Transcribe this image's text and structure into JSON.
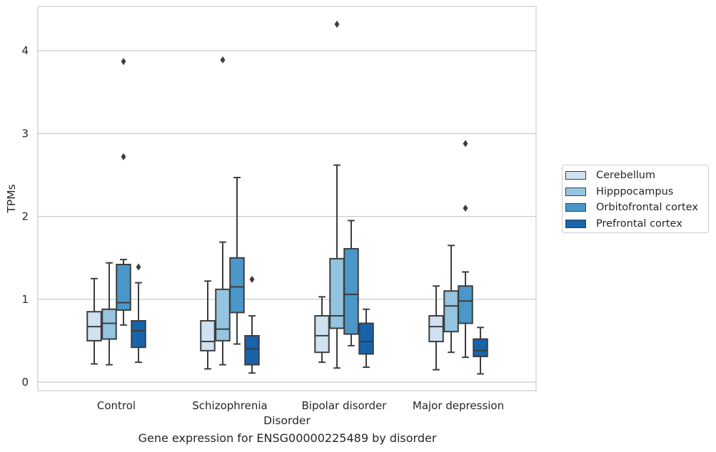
{
  "chart_data": {
    "type": "boxplot",
    "title": "Gene expression for ENSG00000225489 by disorder",
    "xlabel": "Disorder",
    "ylabel": "TPMs",
    "ylim": [
      -0.1,
      4.55
    ],
    "yticks": [
      0,
      1,
      2,
      3,
      4
    ],
    "grid": "horizontal",
    "legend_position": "right, outside plot",
    "categories": [
      "Control",
      "Schizophrenia",
      "Bipolar disorder",
      "Major depression"
    ],
    "series": [
      {
        "name": "Cerebellum",
        "color": "#d0e1f2",
        "boxes": [
          {
            "whislo": 0.22,
            "q1": 0.5,
            "med": 0.67,
            "q3": 0.85,
            "whishi": 1.25,
            "fliers": []
          },
          {
            "whislo": 0.16,
            "q1": 0.38,
            "med": 0.49,
            "q3": 0.74,
            "whishi": 1.22,
            "fliers": []
          },
          {
            "whislo": 0.24,
            "q1": 0.36,
            "med": 0.56,
            "q3": 0.8,
            "whishi": 1.03,
            "fliers": []
          },
          {
            "whislo": 0.15,
            "q1": 0.49,
            "med": 0.67,
            "q3": 0.8,
            "whishi": 1.16,
            "fliers": []
          }
        ]
      },
      {
        "name": "Hipppocampus",
        "color": "#94c4df",
        "boxes": [
          {
            "whislo": 0.21,
            "q1": 0.52,
            "med": 0.71,
            "q3": 0.88,
            "whishi": 1.44,
            "fliers": []
          },
          {
            "whislo": 0.21,
            "q1": 0.5,
            "med": 0.64,
            "q3": 1.12,
            "whishi": 1.69,
            "fliers": [
              3.89
            ]
          },
          {
            "whislo": 0.17,
            "q1": 0.65,
            "med": 0.8,
            "q3": 1.49,
            "whishi": 2.62,
            "fliers": [
              4.32
            ]
          },
          {
            "whislo": 0.36,
            "q1": 0.61,
            "med": 0.92,
            "q3": 1.1,
            "whishi": 1.65,
            "fliers": []
          }
        ]
      },
      {
        "name": "Orbitofrontal cortex",
        "color": "#4a98c9",
        "boxes": [
          {
            "whislo": 0.69,
            "q1": 0.87,
            "med": 0.96,
            "q3": 1.42,
            "whishi": 1.48,
            "fliers": [
              2.72,
              3.87
            ]
          },
          {
            "whislo": 0.46,
            "q1": 0.84,
            "med": 1.15,
            "q3": 1.5,
            "whishi": 2.47,
            "fliers": []
          },
          {
            "whislo": 0.44,
            "q1": 0.58,
            "med": 1.06,
            "q3": 1.61,
            "whishi": 1.95,
            "fliers": []
          },
          {
            "whislo": 0.3,
            "q1": 0.71,
            "med": 0.98,
            "q3": 1.16,
            "whishi": 1.33,
            "fliers": [
              2.1,
              2.88
            ]
          }
        ]
      },
      {
        "name": "Prefrontal cortex",
        "color": "#1764ab",
        "boxes": [
          {
            "whislo": 0.24,
            "q1": 0.42,
            "med": 0.62,
            "q3": 0.74,
            "whishi": 1.2,
            "fliers": [
              1.39
            ]
          },
          {
            "whislo": 0.11,
            "q1": 0.21,
            "med": 0.4,
            "q3": 0.56,
            "whishi": 0.8,
            "fliers": [
              1.24
            ]
          },
          {
            "whislo": 0.18,
            "q1": 0.34,
            "med": 0.49,
            "q3": 0.71,
            "whishi": 0.88,
            "fliers": []
          },
          {
            "whislo": 0.1,
            "q1": 0.31,
            "med": 0.38,
            "q3": 0.52,
            "whishi": 0.66,
            "fliers": []
          }
        ]
      }
    ]
  }
}
